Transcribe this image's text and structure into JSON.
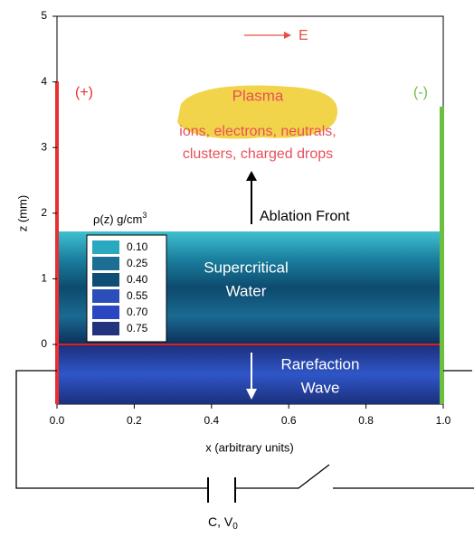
{
  "axes": {
    "x_label": "x (arbitrary units)",
    "y_label": "z (mm)",
    "x_ticks": [
      "0.0",
      "0.2",
      "0.4",
      "0.6",
      "0.8",
      "1.0"
    ],
    "y_ticks": [
      "0",
      "1",
      "2",
      "3",
      "4",
      "5"
    ]
  },
  "electrodes": {
    "anode": "(+)",
    "cathode": "(-)"
  },
  "field": "E",
  "plasma": {
    "title": "Plasma",
    "line1": "ions, electrons, neutrals,",
    "line2": "clusters, charged drops"
  },
  "ablation": "Ablation Front",
  "water": {
    "line1": "Supercritical",
    "line2": "Water"
  },
  "rarefaction": {
    "line1": "Rarefaction",
    "line2": "Wave"
  },
  "legend": {
    "title": "ρ(z) g/cm",
    "title_sup": "3",
    "entries": [
      "0.10",
      "0.25",
      "0.40",
      "0.55",
      "0.70",
      "0.75"
    ]
  },
  "circuit": {
    "label": "C, V",
    "label_sub": "0"
  }
}
